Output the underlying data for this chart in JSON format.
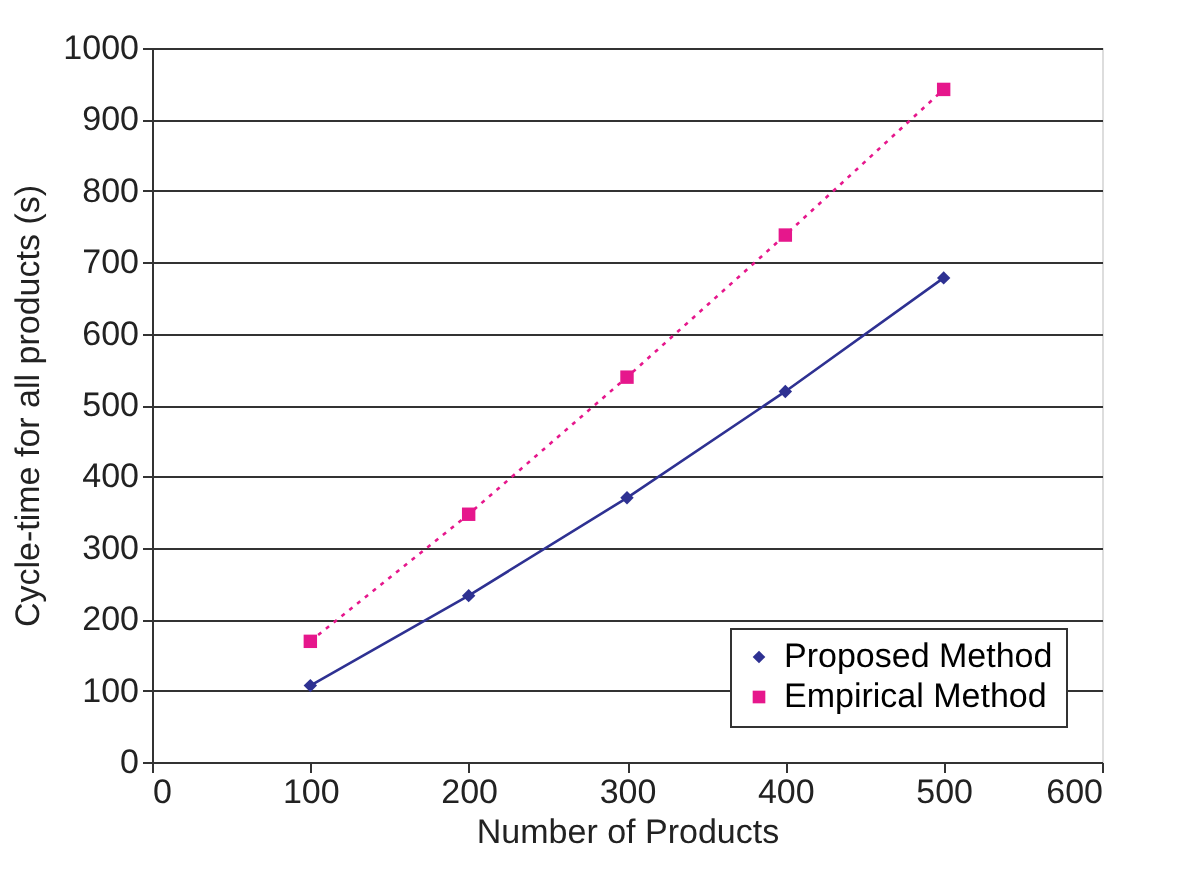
{
  "chart_data": {
    "type": "line",
    "xlabel": "Number of Products",
    "ylabel": "Cycle-time for all products (s)",
    "x": [
      100,
      200,
      300,
      400,
      500
    ],
    "series": [
      {
        "name": "Proposed Method",
        "color": "#2e3192",
        "values": [
          107,
          233,
          370,
          519,
          678
        ],
        "marker": "diamond",
        "line_style": "solid"
      },
      {
        "name": "Empirical Method",
        "color": "#e6178c",
        "values": [
          169,
          347,
          539,
          738,
          942
        ],
        "marker": "square",
        "line_style": "dotted"
      }
    ],
    "xlim": [
      0,
      600
    ],
    "xticks": [
      0,
      100,
      200,
      300,
      400,
      500,
      600
    ],
    "ylim": [
      0,
      1000
    ],
    "yticks": [
      0,
      100,
      200,
      300,
      400,
      500,
      600,
      700,
      800,
      900,
      1000
    ],
    "grid": "y",
    "legend": "bottom right"
  }
}
